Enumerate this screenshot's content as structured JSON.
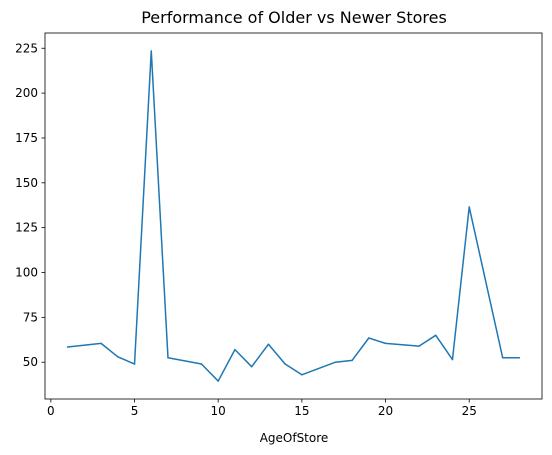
{
  "chart_data": {
    "type": "line",
    "title": "Performance of Older vs Newer Stores",
    "xlabel": "AgeOfStore",
    "ylabel": "",
    "xlim": [
      -0.35,
      29.35
    ],
    "ylim": [
      29.5,
      233.5
    ],
    "x_ticks": [
      0,
      5,
      10,
      15,
      20,
      25
    ],
    "y_ticks": [
      50,
      75,
      100,
      125,
      150,
      175,
      200,
      225
    ],
    "grid": false,
    "legend": "none",
    "series": [
      {
        "color": "#1f77b4",
        "x": [
          1,
          3,
          4,
          5,
          6,
          7,
          9,
          10,
          11,
          12,
          13,
          14,
          15,
          17,
          18,
          19,
          20,
          22,
          23,
          24,
          25,
          27,
          28
        ],
        "y": [
          58.5,
          60.5,
          53,
          49,
          223.5,
          52.5,
          49,
          39.5,
          57,
          47.5,
          60,
          49,
          43,
          50,
          51,
          63.5,
          60.5,
          59,
          65,
          51.5,
          136.5,
          52.5,
          52.5
        ]
      }
    ]
  }
}
